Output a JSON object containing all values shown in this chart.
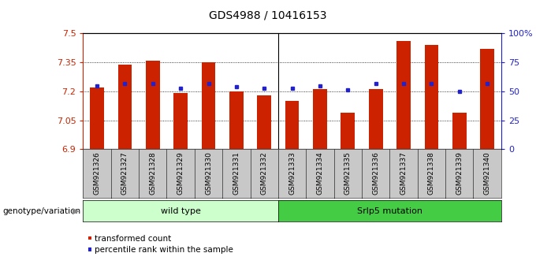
{
  "title": "GDS4988 / 10416153",
  "samples": [
    "GSM921326",
    "GSM921327",
    "GSM921328",
    "GSM921329",
    "GSM921330",
    "GSM921331",
    "GSM921332",
    "GSM921333",
    "GSM921334",
    "GSM921335",
    "GSM921336",
    "GSM921337",
    "GSM921338",
    "GSM921339",
    "GSM921340"
  ],
  "transformed_counts": [
    7.22,
    7.34,
    7.36,
    7.19,
    7.35,
    7.2,
    7.18,
    7.15,
    7.21,
    7.09,
    7.21,
    7.46,
    7.44,
    7.09,
    7.42
  ],
  "percentile_ranks": [
    55,
    57,
    57,
    53,
    57,
    54,
    53,
    53,
    55,
    51,
    57,
    57,
    57,
    50,
    57
  ],
  "y_min": 6.9,
  "y_max": 7.5,
  "y_ticks": [
    6.9,
    7.05,
    7.2,
    7.35,
    7.5
  ],
  "y_tick_labels": [
    "6.9",
    "7.05",
    "7.2",
    "7.35",
    "7.5"
  ],
  "right_y_ticks": [
    0,
    25,
    50,
    75,
    100
  ],
  "right_y_tick_labels": [
    "0",
    "25",
    "50",
    "75",
    "100%"
  ],
  "bar_color": "#CC2200",
  "dot_color": "#2222CC",
  "group1_label": "wild type",
  "group2_label": "Srlp5 mutation",
  "group1_count": 7,
  "group2_count": 8,
  "group1_bg": "#CCFFCC",
  "group2_bg": "#44CC44",
  "legend_label1": "transformed count",
  "legend_label2": "percentile rank within the sample",
  "xlabel_genotype": "genotype/variation",
  "title_fontsize": 10,
  "bar_width": 0.5,
  "bar_base": 6.9,
  "tick_bg_color": "#C8C8C8"
}
